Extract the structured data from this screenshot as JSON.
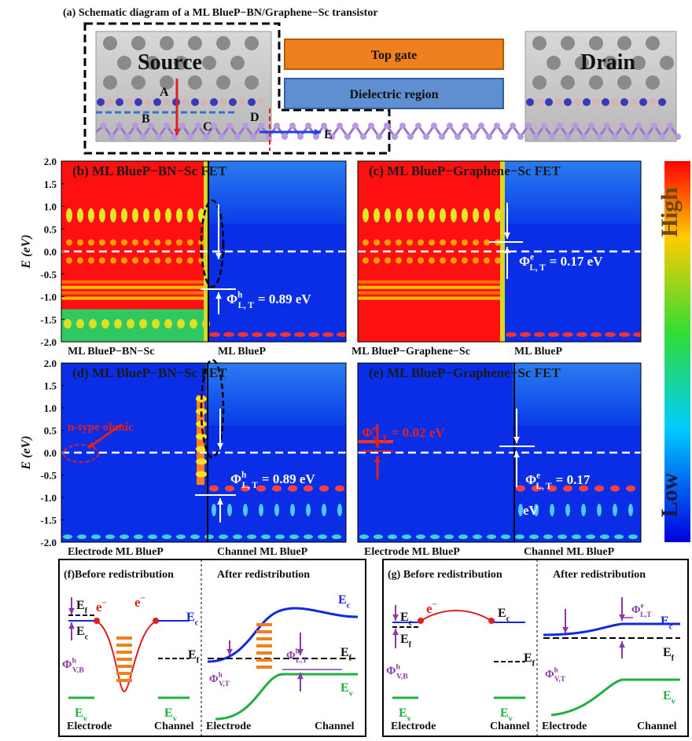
{
  "a": {
    "title": "(a) Schematic diagram of a ML BlueP−BN/Graphene−Sc transistor",
    "source": "Source",
    "drain": "Drain",
    "gate": "Top gate",
    "dielectric": "Dielectric region",
    "points": [
      "A",
      "B",
      "C",
      "D",
      "E"
    ]
  },
  "axis": {
    "label": "E (eV)",
    "ticks": [
      "2.0",
      "1.5",
      "1.0",
      "0.5",
      "0.0",
      "-0.5",
      "-1.0",
      "-1.5",
      "-2.0"
    ]
  },
  "colorbar": {
    "high": "High",
    "low": "Low"
  },
  "b": {
    "title": "(b) ML BlueP−BN−Sc FET",
    "left": "ML BlueP−BN−Sc",
    "right": "ML BlueP",
    "phi": {
      "sym": "Φ",
      "sup": "h",
      "sub": "L, T",
      "value": "= 0.89 eV"
    }
  },
  "c": {
    "title": "(c) ML BlueP−Graphene−Sc FET",
    "left": "ML BlueP−Graphene−Sc",
    "right": "ML BlueP",
    "phi": {
      "sym": "Φ",
      "sup": "e",
      "sub": "L, T",
      "value": "= 0.17 eV"
    }
  },
  "d": {
    "title": "(d) ML BlueP−BN−Sc FET",
    "left": "Electrode ML BlueP",
    "right": "Channel  ML BlueP",
    "note": "n-type ohmic",
    "phi": {
      "sym": "Φ",
      "sup": "h",
      "sub": "L, T",
      "value": "= 0.89 eV"
    }
  },
  "e": {
    "title": "(e) ML BlueP−Graphene−Sc FET",
    "left": "Electrode ML BlueP",
    "right": "Channel  ML BlueP",
    "phi_v": {
      "sym": "Φ",
      "sup": "e",
      "sub": "V, T",
      "value": "= 0.02 eV"
    },
    "phi_l": {
      "sym": "Φ",
      "sup": "e",
      "sub": "L, T",
      "value": "= 0.17"
    },
    "unit": "eV"
  },
  "f": {
    "before": "(f)Before redistribution",
    "after": "After redistribution",
    "electrode": "Electrode",
    "channel": "Channel",
    "Ef": {
      "sym": "E",
      "sub": "f"
    },
    "Ec": {
      "sym": "E",
      "sub": "c"
    },
    "Ev": {
      "sym": "E",
      "sub": "v"
    },
    "electron": {
      "sym": "e",
      "sup": "−"
    },
    "phi_vb": {
      "sym": "Φ",
      "sup": "h",
      "sub": "V,B"
    },
    "phi_vt": {
      "sym": "Φ",
      "sup": "h",
      "sub": "V,T"
    },
    "phi_lt": {
      "sym": "Φ",
      "sup": "h",
      "sub": "L,T"
    }
  },
  "g": {
    "before": "(g) Before redistribution",
    "after": "After redistribution",
    "electrode": "Electrode",
    "channel": "Channel",
    "Ef": {
      "sym": "E",
      "sub": "f"
    },
    "Ec": {
      "sym": "E",
      "sub": "c"
    },
    "Ev": {
      "sym": "E",
      "sub": "v"
    },
    "electron": {
      "sym": "e",
      "sup": "−"
    },
    "phi_vb": {
      "sym": "Φ",
      "sup": "h",
      "sub": "V,B"
    },
    "phi_vt": {
      "sym": "Φ",
      "sup": "h",
      "sub": "V,T"
    },
    "phi_lt": {
      "sym": "Φ",
      "sup": "e",
      "sub": "L,T"
    }
  }
}
